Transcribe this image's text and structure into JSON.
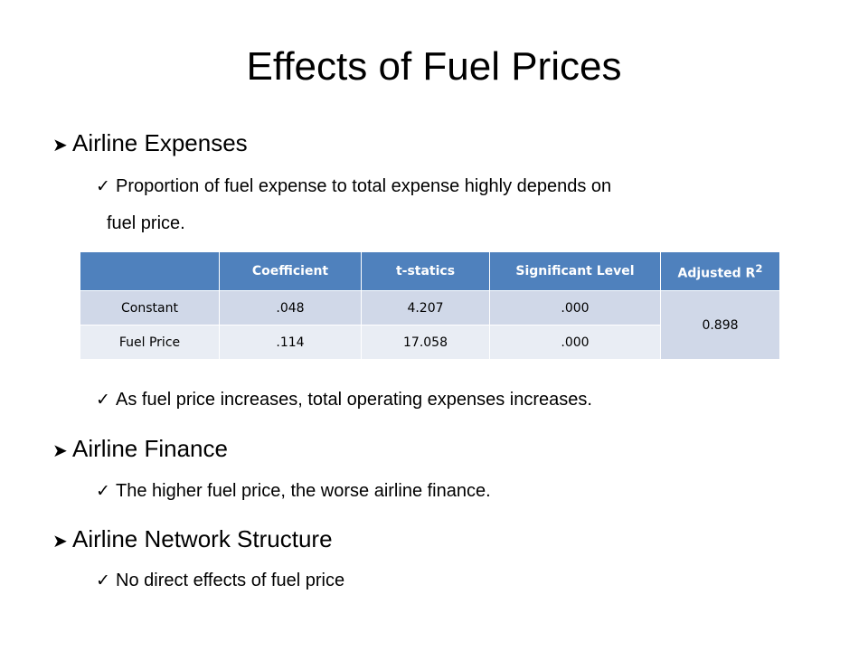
{
  "title": "Effects of Fuel Prices",
  "bullets": {
    "expenses": {
      "heading": "Airline Expenses",
      "point1_line1": "Proportion of fuel expense to total expense highly depends on",
      "point1_line2": "fuel price.",
      "point2": "As fuel price increases, total operating expenses increases."
    },
    "finance": {
      "heading": "Airline Finance",
      "point1": "The higher fuel price, the worse airline finance."
    },
    "network": {
      "heading": "Airline Network Structure",
      "point1": "No direct effects of fuel price"
    }
  },
  "table": {
    "headers": [
      "",
      "Coefficient",
      "t-statics",
      "Significant Level",
      "Adjusted R"
    ],
    "adjusted_superscript": "2",
    "rows": [
      {
        "label": "Constant",
        "coefficient": ".048",
        "t": "4.207",
        "sig": ".000"
      },
      {
        "label": "Fuel Price",
        "coefficient": ".114",
        "t": "17.058",
        "sig": ".000"
      }
    ],
    "adjusted_value": "0.898"
  },
  "colors": {
    "header_bg": "#4f81bd",
    "row_bg": "#d0d8e8",
    "row_alt_bg": "#e9edf4"
  },
  "icons": {
    "level1": "arrow-bullet-icon",
    "level2": "check-bullet-icon"
  }
}
